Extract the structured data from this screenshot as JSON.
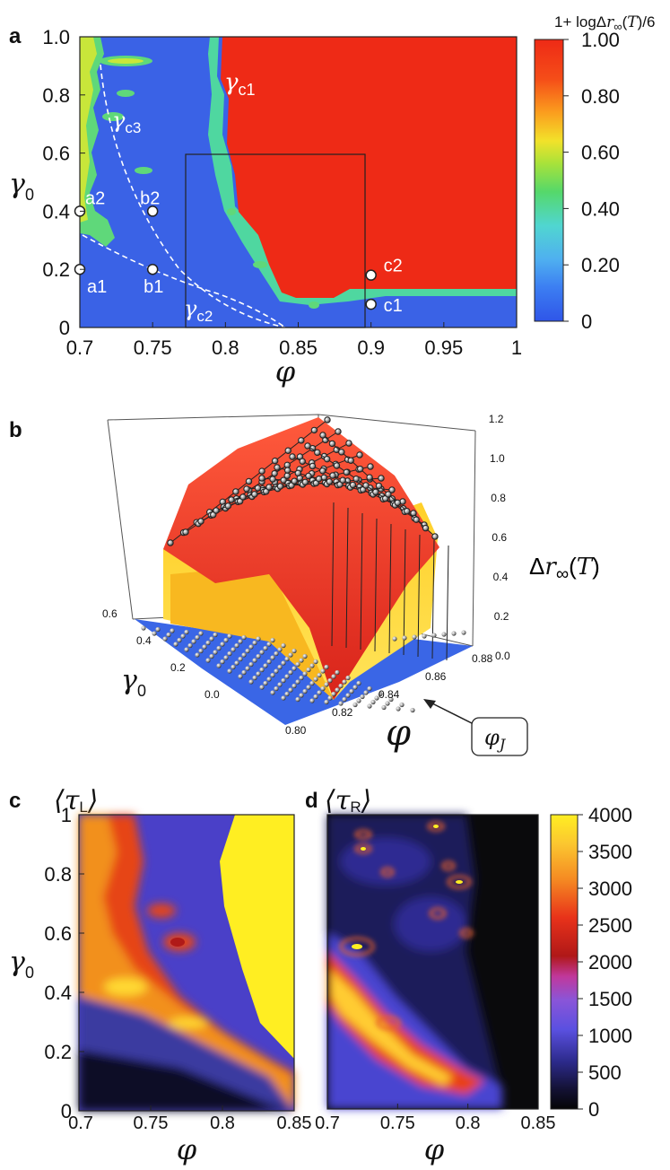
{
  "chart_data": [
    {
      "panel": "a",
      "type": "heatmap",
      "xlabel": "φ",
      "ylabel": "γ0",
      "xlim": [
        0.7,
        1.0
      ],
      "ylim": [
        0,
        1.0
      ],
      "xticks": [
        "0.7",
        "0.75",
        "0.8",
        "0.85",
        "0.9",
        "0.95",
        "1"
      ],
      "yticks": [
        "0",
        "0.2",
        "0.4",
        "0.6",
        "0.8",
        "1.0"
      ],
      "colorbar": {
        "title": "1+ logΔr∞(T)/6",
        "ticks": [
          "0",
          "0.20",
          "0.40",
          "0.60",
          "0.80",
          "1.00"
        ],
        "range": [
          0,
          1.0
        ]
      },
      "curves": [
        {
          "name": "γc1",
          "label_sub": "c1"
        },
        {
          "name": "γc2",
          "label_sub": "c2"
        },
        {
          "name": "γc3",
          "label_sub": "c3"
        }
      ],
      "points": [
        {
          "label": "a1",
          "x": 0.7,
          "y": 0.2
        },
        {
          "label": "a2",
          "x": 0.7,
          "y": 0.4
        },
        {
          "label": "b1",
          "x": 0.75,
          "y": 0.2
        },
        {
          "label": "b2",
          "x": 0.75,
          "y": 0.4
        },
        {
          "label": "c1",
          "x": 0.9,
          "y": 0.08
        },
        {
          "label": "c2",
          "x": 0.9,
          "y": 0.18
        }
      ],
      "inset_box": {
        "xlim": [
          0.775,
          0.9
        ],
        "ylim": [
          0,
          0.6
        ]
      }
    },
    {
      "panel": "b",
      "type": "surface3d",
      "xlabel": "φ",
      "ylabel": "γ0",
      "zlabel": "Δr∞(T)",
      "xticks": [
        "0.80",
        "0.82",
        "0.84",
        "0.86",
        "0.88"
      ],
      "yticks": [
        "0.0",
        "0.2",
        "0.4",
        "0.6"
      ],
      "zticks": [
        "0.0",
        "0.2",
        "0.4",
        "0.6",
        "0.8",
        "1.0",
        "1.2"
      ],
      "annotation": "φJ"
    },
    {
      "panel": "c",
      "type": "heatmap",
      "title": "⟨τL⟩",
      "xlabel": "φ",
      "ylabel": "γ0",
      "xlim": [
        0.7,
        0.85
      ],
      "ylim": [
        0,
        1.0
      ],
      "xticks": [
        "0.7",
        "0.75",
        "0.8",
        "0.85"
      ],
      "yticks": [
        "0",
        "0.2",
        "0.4",
        "0.6",
        "0.8",
        "1"
      ]
    },
    {
      "panel": "d",
      "type": "heatmap",
      "title": "⟨τR⟩",
      "xlabel": "φ",
      "xlim": [
        0.7,
        0.85
      ],
      "ylim": [
        0,
        1.0
      ],
      "xticks": [
        "0.7",
        "0.75",
        "0.8",
        "0.85"
      ],
      "colorbar": {
        "ticks": [
          "0",
          "500",
          "1000",
          "1500",
          "2000",
          "2500",
          "3000",
          "3500",
          "4000"
        ],
        "range": [
          0,
          4000
        ]
      }
    }
  ],
  "colors": {
    "blue": "#3a66e6",
    "red": "#ee2a16",
    "yellow": "#ffee22",
    "black": "#0a0a0c"
  }
}
